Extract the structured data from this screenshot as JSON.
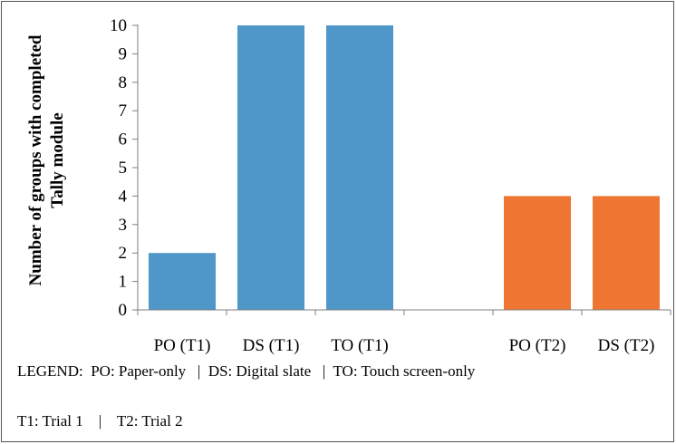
{
  "chart_data": {
    "type": "bar",
    "categories": [
      "PO (T1)",
      "DS (T1)",
      "TO (T1)",
      "",
      "PO (T2)",
      "DS (T2)"
    ],
    "series": [
      {
        "values": [
          2,
          10,
          10,
          null,
          null,
          null
        ],
        "color": "#4f97c9"
      },
      {
        "values": [
          null,
          null,
          null,
          null,
          4,
          4
        ],
        "color": "#ee7532"
      }
    ],
    "title": "",
    "xlabel": "",
    "ylabel": "Number of groups with completed Tally module",
    "ylabel_lines": [
      "Number of groups with completed",
      "Tally module"
    ],
    "ylim": [
      0,
      10
    ],
    "yticks": [
      0,
      1,
      2,
      3,
      4,
      5,
      6,
      7,
      8,
      9,
      10
    ],
    "grid": false
  },
  "legend_text": "LEGEND:  PO: Paper-only   |  DS: Digital slate   |  TO: Touch screen-only",
  "trials_text": "T1: Trial 1    |    T2: Trial 2"
}
